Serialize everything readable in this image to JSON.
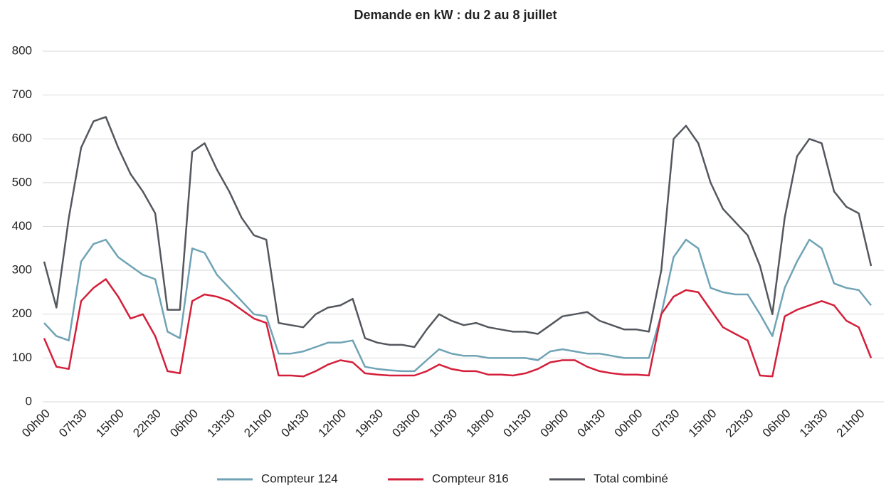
{
  "chart_data": {
    "type": "line",
    "title": "Demande en kW : du 2 au 8 juillet",
    "categories": [
      "00h00",
      null,
      null,
      "07h30",
      null,
      null,
      "15h00",
      null,
      null,
      "22h30",
      null,
      null,
      "06h00",
      null,
      null,
      "13h30",
      null,
      null,
      "21h00",
      null,
      null,
      "04h30",
      null,
      null,
      "12h00",
      null,
      null,
      "19h30",
      null,
      null,
      "03h00",
      null,
      null,
      "10h30",
      null,
      null,
      "18h00",
      null,
      null,
      "01h30",
      null,
      null,
      "09h00",
      null,
      null,
      "04h30",
      null,
      null,
      "00h00",
      null,
      null,
      "07h30",
      null,
      null,
      "15h00",
      null,
      null,
      "22h30",
      null,
      null,
      "06h00",
      null,
      null,
      "13h30",
      null,
      null,
      "21h00",
      null
    ],
    "series": [
      {
        "name": "Total combiné",
        "color": "#54585e",
        "values": [
          320,
          215,
          420,
          580,
          640,
          650,
          580,
          520,
          480,
          430,
          210,
          210,
          570,
          590,
          530,
          480,
          420,
          380,
          370,
          180,
          175,
          170,
          200,
          215,
          220,
          235,
          145,
          135,
          130,
          130,
          125,
          165,
          200,
          185,
          175,
          180,
          170,
          165,
          160,
          160,
          155,
          175,
          195,
          200,
          205,
          185,
          175,
          165,
          165,
          160,
          300,
          600,
          630,
          590,
          500,
          440,
          410,
          380,
          310,
          200,
          420,
          560,
          600,
          590,
          480,
          445,
          430,
          310
        ]
      },
      {
        "name": "Compteur 124",
        "color": "#6fa3b5",
        "values": [
          180,
          150,
          140,
          320,
          360,
          370,
          330,
          310,
          290,
          280,
          160,
          145,
          350,
          340,
          290,
          260,
          230,
          200,
          195,
          110,
          110,
          115,
          125,
          135,
          135,
          140,
          80,
          75,
          72,
          70,
          70,
          95,
          120,
          110,
          105,
          105,
          100,
          100,
          100,
          100,
          95,
          115,
          120,
          115,
          110,
          110,
          105,
          100,
          100,
          100,
          200,
          330,
          370,
          350,
          260,
          250,
          245,
          245,
          200,
          150,
          260,
          320,
          370,
          350,
          270,
          260,
          255,
          220
        ]
      },
      {
        "name": "Compteur 816",
        "color": "#d41f3a",
        "values": [
          145,
          80,
          75,
          230,
          260,
          280,
          240,
          190,
          200,
          150,
          70,
          65,
          230,
          245,
          240,
          230,
          210,
          190,
          180,
          60,
          60,
          58,
          70,
          85,
          95,
          90,
          65,
          62,
          60,
          60,
          60,
          70,
          85,
          75,
          70,
          70,
          62,
          62,
          60,
          65,
          75,
          90,
          95,
          95,
          80,
          70,
          65,
          62,
          62,
          60,
          200,
          240,
          255,
          250,
          210,
          170,
          155,
          140,
          60,
          58,
          195,
          210,
          220,
          230,
          220,
          185,
          170,
          100
        ]
      }
    ],
    "ylim": [
      0,
      800
    ],
    "yticks": [
      0,
      100,
      200,
      300,
      400,
      500,
      600,
      700,
      800
    ],
    "grid": true
  }
}
